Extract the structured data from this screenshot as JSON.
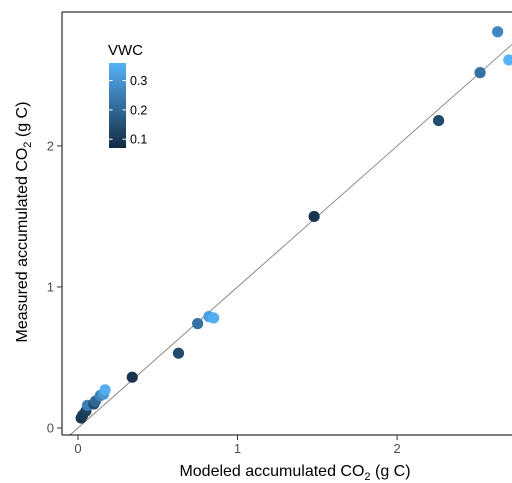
{
  "chart_data": {
    "type": "scatter",
    "xlabel": "Modeled accumulated CO",
    "xlabel_sub": "2",
    "xlabel_unit": " (g C)",
    "ylabel": "Measured accumulated  CO",
    "ylabel_sub": "2",
    "ylabel_unit": " (g C)",
    "xlim": [
      -0.1,
      2.72
    ],
    "ylim": [
      -0.05,
      2.95
    ],
    "x_ticks": [
      0,
      1,
      2
    ],
    "y_ticks": [
      0,
      1,
      2
    ],
    "grid": false,
    "reference_line": {
      "type": "1:1 line",
      "color": "#808080"
    },
    "legend": {
      "title": "VWC",
      "type": "colorbar",
      "placement": "top-left",
      "ticks": [
        "0.1",
        "0.2",
        "0.3"
      ],
      "tick_values": [
        0.1,
        0.2,
        0.3
      ],
      "range": [
        0.07,
        0.36
      ],
      "color_low": "#132B43",
      "color_high": "#56B1F7"
    },
    "points": [
      {
        "x": 0.02,
        "y": 0.07,
        "vwc": 0.09
      },
      {
        "x": 0.03,
        "y": 0.09,
        "vwc": 0.1
      },
      {
        "x": 0.05,
        "y": 0.12,
        "vwc": 0.12
      },
      {
        "x": 0.06,
        "y": 0.16,
        "vwc": 0.25
      },
      {
        "x": 0.1,
        "y": 0.17,
        "vwc": 0.15
      },
      {
        "x": 0.11,
        "y": 0.19,
        "vwc": 0.2
      },
      {
        "x": 0.14,
        "y": 0.23,
        "vwc": 0.26
      },
      {
        "x": 0.16,
        "y": 0.24,
        "vwc": 0.3
      },
      {
        "x": 0.17,
        "y": 0.27,
        "vwc": 0.35
      },
      {
        "x": 0.34,
        "y": 0.36,
        "vwc": 0.09
      },
      {
        "x": 0.63,
        "y": 0.53,
        "vwc": 0.14
      },
      {
        "x": 0.75,
        "y": 0.74,
        "vwc": 0.22
      },
      {
        "x": 0.82,
        "y": 0.79,
        "vwc": 0.32
      },
      {
        "x": 0.85,
        "y": 0.78,
        "vwc": 0.35
      },
      {
        "x": 1.48,
        "y": 1.5,
        "vwc": 0.09
      },
      {
        "x": 2.26,
        "y": 2.18,
        "vwc": 0.14
      },
      {
        "x": 2.52,
        "y": 2.52,
        "vwc": 0.22
      },
      {
        "x": 2.63,
        "y": 2.81,
        "vwc": 0.27
      },
      {
        "x": 2.7,
        "y": 2.61,
        "vwc": 0.36
      }
    ]
  }
}
